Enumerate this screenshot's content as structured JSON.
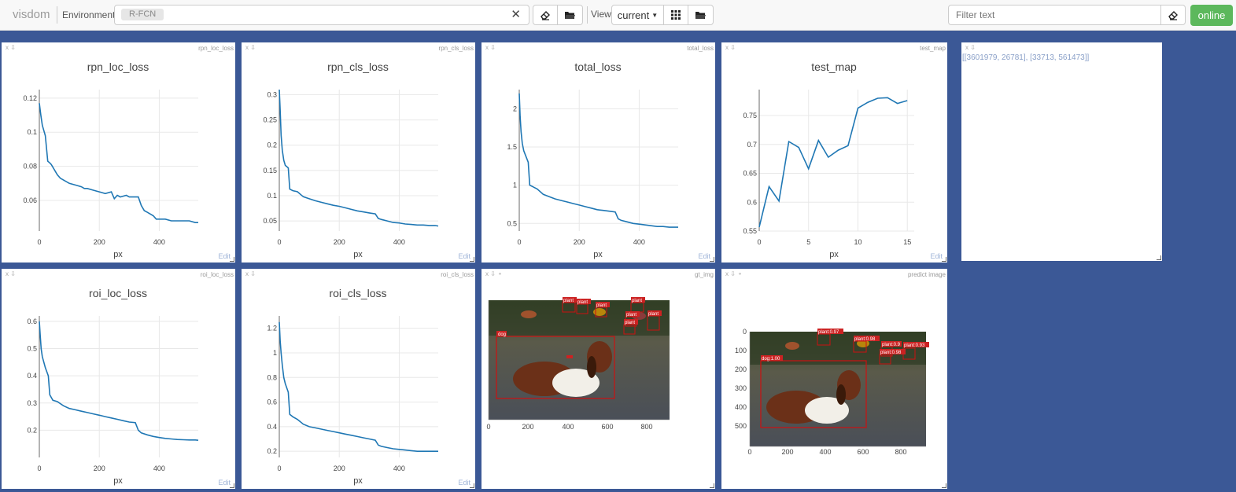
{
  "app": {
    "brand": "visdom",
    "env_label": "Environment",
    "env_value": "R-FCN",
    "view_label": "View",
    "view_value": "current",
    "filter_placeholder": "Filter text",
    "status": "online"
  },
  "icons": {
    "clear": "close-icon",
    "eraser": "eraser-icon",
    "folder": "folder-icon",
    "grid": "grid-icon"
  },
  "colors": {
    "background": "#3b5896",
    "line": "#1f77b4",
    "online": "#5cb85c"
  },
  "panes": {
    "rpn_loc": {
      "tag": "rpn_loc_loss",
      "title": "rpn_loc_loss",
      "xlabel": "px",
      "edit": "Edit"
    },
    "rpn_cls": {
      "tag": "rpn_cls_loss",
      "title": "rpn_cls_loss",
      "xlabel": "px",
      "edit": "Edit"
    },
    "total": {
      "tag": "total_loss",
      "title": "total_loss",
      "xlabel": "px",
      "edit": "Edit"
    },
    "test_map": {
      "tag": "test_map",
      "title": "test_map",
      "xlabel": "px",
      "edit": "Edit"
    },
    "text": {
      "content": "[[3601979, 26781], [33713, 561473]]"
    },
    "roi_loc": {
      "tag": "roi_loc_loss",
      "title": "roi_loc_loss",
      "xlabel": "px",
      "edit": "Edit"
    },
    "roi_cls": {
      "tag": "roi_cls_loss",
      "title": "roi_cls_loss",
      "xlabel": "px",
      "edit": "Edit"
    },
    "gt_img": {
      "tag": "gt_img",
      "labels": [
        "plant",
        "plant",
        "plant",
        "plant",
        "plant",
        "plant",
        "plant",
        "dog"
      ],
      "xticks": [
        "0",
        "200",
        "400",
        "600",
        "800"
      ]
    },
    "predict_img": {
      "tag": "predict image",
      "labels": [
        "plant:0.97",
        "plant:0.98",
        "plant:0.9",
        "plant:0.93",
        "plant:0.98",
        "dog:1.00"
      ],
      "xticks": [
        "0",
        "200",
        "400",
        "600",
        "800"
      ],
      "yticks": [
        "0",
        "100",
        "200",
        "300",
        "400",
        "500"
      ]
    }
  },
  "chart_data": [
    {
      "id": "rpn_loc",
      "type": "line",
      "title": "rpn_loc_loss",
      "xlabel": "px",
      "ylabel": "",
      "xlim": [
        0,
        530
      ],
      "ylim": [
        0.042,
        0.125
      ],
      "yticks": [
        0.06,
        0.08,
        0.1,
        0.12
      ],
      "xticks": [
        0,
        200,
        400
      ],
      "x": [
        0,
        5,
        10,
        20,
        28,
        35,
        40,
        60,
        70,
        80,
        100,
        120,
        140,
        150,
        160,
        180,
        200,
        220,
        240,
        250,
        260,
        270,
        290,
        300,
        310,
        320,
        330,
        340,
        350,
        360,
        380,
        390,
        400,
        420,
        440,
        460,
        480,
        500,
        520,
        530
      ],
      "y": [
        0.117,
        0.11,
        0.104,
        0.098,
        0.083,
        0.082,
        0.081,
        0.075,
        0.073,
        0.072,
        0.07,
        0.069,
        0.068,
        0.067,
        0.067,
        0.066,
        0.065,
        0.064,
        0.065,
        0.061,
        0.063,
        0.062,
        0.063,
        0.062,
        0.062,
        0.062,
        0.062,
        0.057,
        0.054,
        0.053,
        0.051,
        0.049,
        0.049,
        0.049,
        0.048,
        0.048,
        0.048,
        0.048,
        0.047,
        0.047
      ]
    },
    {
      "id": "rpn_cls",
      "type": "line",
      "title": "rpn_cls_loss",
      "xlabel": "px",
      "ylabel": "",
      "xlim": [
        0,
        530
      ],
      "ylim": [
        0.03,
        0.31
      ],
      "yticks": [
        0.05,
        0.1,
        0.15,
        0.2,
        0.25,
        0.3
      ],
      "xticks": [
        0,
        200,
        400
      ],
      "x": [
        0,
        3,
        6,
        10,
        15,
        20,
        30,
        35,
        45,
        60,
        80,
        100,
        120,
        140,
        160,
        180,
        200,
        220,
        240,
        260,
        280,
        300,
        320,
        330,
        340,
        360,
        380,
        400,
        420,
        440,
        460,
        480,
        500,
        520,
        530
      ],
      "y": [
        0.31,
        0.27,
        0.22,
        0.19,
        0.17,
        0.16,
        0.155,
        0.113,
        0.11,
        0.108,
        0.098,
        0.094,
        0.09,
        0.087,
        0.084,
        0.081,
        0.079,
        0.076,
        0.073,
        0.07,
        0.068,
        0.066,
        0.064,
        0.055,
        0.053,
        0.05,
        0.047,
        0.046,
        0.044,
        0.043,
        0.042,
        0.042,
        0.041,
        0.041,
        0.04
      ]
    },
    {
      "id": "total",
      "type": "line",
      "title": "total_loss",
      "xlabel": "px",
      "ylabel": "",
      "xlim": [
        0,
        530
      ],
      "ylim": [
        0.4,
        2.25
      ],
      "yticks": [
        0.5,
        1,
        1.5,
        2
      ],
      "xticks": [
        0,
        200,
        400
      ],
      "x": [
        0,
        3,
        6,
        10,
        15,
        20,
        30,
        35,
        45,
        60,
        80,
        100,
        120,
        140,
        160,
        180,
        200,
        220,
        240,
        260,
        280,
        300,
        320,
        330,
        340,
        360,
        380,
        400,
        420,
        440,
        460,
        480,
        500,
        520,
        530
      ],
      "y": [
        2.2,
        1.9,
        1.7,
        1.55,
        1.45,
        1.4,
        1.3,
        1.0,
        0.98,
        0.95,
        0.88,
        0.85,
        0.82,
        0.8,
        0.78,
        0.76,
        0.74,
        0.72,
        0.7,
        0.68,
        0.67,
        0.66,
        0.65,
        0.56,
        0.54,
        0.52,
        0.5,
        0.49,
        0.48,
        0.47,
        0.46,
        0.46,
        0.45,
        0.45,
        0.45
      ]
    },
    {
      "id": "test_map",
      "type": "line",
      "title": "test_map",
      "xlabel": "px",
      "ylabel": "",
      "xlim": [
        0,
        15.7
      ],
      "ylim": [
        0.55,
        0.795
      ],
      "yticks": [
        0.55,
        0.6,
        0.65,
        0.7,
        0.75
      ],
      "xticks": [
        0,
        5,
        10,
        15
      ],
      "x": [
        0,
        1,
        2,
        3,
        4,
        5,
        6,
        7,
        8,
        9,
        10,
        11,
        12,
        13,
        14,
        15
      ],
      "y": [
        0.557,
        0.627,
        0.602,
        0.705,
        0.695,
        0.658,
        0.707,
        0.678,
        0.69,
        0.698,
        0.763,
        0.773,
        0.78,
        0.781,
        0.771,
        0.776
      ]
    },
    {
      "id": "roi_loc",
      "type": "line",
      "title": "roi_loc_loss",
      "xlabel": "px",
      "ylabel": "",
      "xlim": [
        0,
        530
      ],
      "ylim": [
        0.1,
        0.62
      ],
      "yticks": [
        0.2,
        0.3,
        0.4,
        0.5,
        0.6
      ],
      "xticks": [
        0,
        200,
        400
      ],
      "x": [
        0,
        3,
        6,
        10,
        15,
        20,
        30,
        35,
        45,
        60,
        80,
        100,
        120,
        140,
        160,
        180,
        200,
        220,
        240,
        260,
        280,
        300,
        320,
        330,
        340,
        360,
        380,
        400,
        420,
        440,
        460,
        480,
        500,
        520,
        530
      ],
      "y": [
        0.6,
        0.55,
        0.5,
        0.47,
        0.45,
        0.43,
        0.4,
        0.33,
        0.31,
        0.305,
        0.29,
        0.28,
        0.275,
        0.27,
        0.265,
        0.26,
        0.255,
        0.25,
        0.245,
        0.24,
        0.235,
        0.23,
        0.228,
        0.2,
        0.19,
        0.183,
        0.177,
        0.173,
        0.17,
        0.168,
        0.166,
        0.165,
        0.164,
        0.164,
        0.163
      ]
    },
    {
      "id": "roi_cls",
      "type": "line",
      "title": "roi_cls_loss",
      "xlabel": "px",
      "ylabel": "",
      "xlim": [
        0,
        530
      ],
      "ylim": [
        0.15,
        1.3
      ],
      "yticks": [
        0.2,
        0.4,
        0.6,
        0.8,
        1,
        1.2
      ],
      "xticks": [
        0,
        200,
        400
      ],
      "x": [
        0,
        3,
        6,
        10,
        15,
        20,
        30,
        35,
        45,
        60,
        80,
        100,
        120,
        140,
        160,
        180,
        200,
        220,
        240,
        260,
        280,
        300,
        320,
        330,
        340,
        360,
        380,
        400,
        420,
        440,
        460,
        480,
        500,
        520,
        530
      ],
      "y": [
        1.25,
        1.1,
        1.0,
        0.9,
        0.8,
        0.75,
        0.68,
        0.5,
        0.48,
        0.46,
        0.42,
        0.4,
        0.39,
        0.38,
        0.37,
        0.36,
        0.35,
        0.34,
        0.33,
        0.32,
        0.31,
        0.3,
        0.29,
        0.25,
        0.24,
        0.23,
        0.22,
        0.215,
        0.21,
        0.205,
        0.2,
        0.2,
        0.2,
        0.2,
        0.2
      ]
    }
  ]
}
